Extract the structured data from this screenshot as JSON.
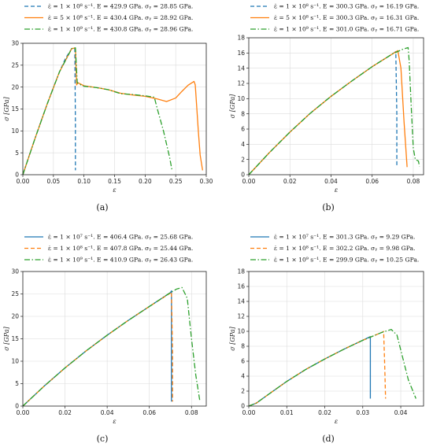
{
  "chart_data": [
    {
      "type": "line",
      "caption": "(a)",
      "xlabel": "ε",
      "ylabel": "σ [GPa]",
      "xlim": [
        0,
        0.3
      ],
      "ylim": [
        0,
        30
      ],
      "xticks": [
        0.0,
        0.05,
        0.1,
        0.15,
        0.2,
        0.25,
        0.3
      ],
      "xtick_labels": [
        "0.00",
        "0.05",
        "0.10",
        "0.15",
        "0.20",
        "0.25",
        "0.30"
      ],
      "yticks": [
        0,
        5,
        10,
        15,
        20,
        25,
        30
      ],
      "ytick_labels": [
        "0",
        "5",
        "10",
        "15",
        "20",
        "25",
        "30"
      ],
      "grid": true,
      "legend_position": "top-left (above plot)",
      "series": [
        {
          "name": "ε̇ = 1 × 10⁸ s⁻¹. E = 429.9 GPa. σᵧ = 28.85 GPa.",
          "color": "#1f77b4",
          "style": "dashed",
          "x": [
            0,
            0.01,
            0.02,
            0.03,
            0.04,
            0.05,
            0.06,
            0.07,
            0.08,
            0.085,
            0.086,
            0.086
          ],
          "y": [
            0,
            4.2,
            8.3,
            12.3,
            16.2,
            19.9,
            23.5,
            26.6,
            28.8,
            28.85,
            12,
            1
          ]
        },
        {
          "name": "ε̇ = 5 × 10⁸ s⁻¹. E = 430.4 GPa. σᵧ = 28.92 GPa.",
          "color": "#ff7f0e",
          "style": "solid",
          "x": [
            0,
            0.02,
            0.04,
            0.06,
            0.08,
            0.086,
            0.088,
            0.09,
            0.1,
            0.12,
            0.14,
            0.16,
            0.18,
            0.2,
            0.22,
            0.235,
            0.25,
            0.26,
            0.27,
            0.28,
            0.282,
            0.287,
            0.29,
            0.294
          ],
          "y": [
            0,
            8.3,
            16.2,
            23.5,
            28.8,
            28.92,
            20.5,
            21,
            20.3,
            19.9,
            19.4,
            18.6,
            18.2,
            17.9,
            17.3,
            16.7,
            17.5,
            19,
            20.4,
            21.3,
            20.5,
            10,
            4.5,
            1
          ]
        },
        {
          "name": "ε̇ = 1 × 10⁹ s⁻¹. E = 430.8 GPa. σᵧ = 28.96 GPa.",
          "color": "#2ca02c",
          "style": "dashdot",
          "x": [
            0,
            0.02,
            0.04,
            0.06,
            0.08,
            0.086,
            0.089,
            0.095,
            0.1,
            0.12,
            0.14,
            0.16,
            0.18,
            0.2,
            0.215,
            0.22,
            0.23,
            0.24,
            0.244
          ],
          "y": [
            0,
            8.3,
            16.2,
            23.5,
            28.8,
            28.96,
            21,
            20.5,
            20.2,
            19.9,
            19.4,
            18.5,
            18.3,
            18.0,
            17.7,
            15,
            10,
            4,
            1
          ]
        }
      ]
    },
    {
      "type": "line",
      "caption": "(b)",
      "xlabel": "ε",
      "ylabel": "σ [GPa]",
      "xlim": [
        0,
        0.085
      ],
      "ylim": [
        0,
        18
      ],
      "xticks": [
        0.0,
        0.02,
        0.04,
        0.06,
        0.08
      ],
      "xtick_labels": [
        "0.00",
        "0.02",
        "0.04",
        "0.06",
        "0.08"
      ],
      "yticks": [
        0,
        2,
        4,
        6,
        8,
        10,
        12,
        14,
        16,
        18
      ],
      "ytick_labels": [
        "0",
        "2",
        "4",
        "6",
        "8",
        "10",
        "12",
        "14",
        "16",
        "18"
      ],
      "grid": true,
      "legend_position": "top-left (above plot)",
      "series": [
        {
          "name": "ε̇ = 1 × 10⁸ s⁻¹. E = 300.3 GPa. σᵧ = 16.19 GPa.",
          "color": "#1f77b4",
          "style": "dashed",
          "x": [
            0,
            0.01,
            0.02,
            0.03,
            0.04,
            0.05,
            0.06,
            0.07,
            0.0715,
            0.072,
            0.072
          ],
          "y": [
            0,
            2.9,
            5.6,
            8.1,
            10.3,
            12.3,
            14.2,
            15.9,
            16.19,
            8,
            1
          ]
        },
        {
          "name": "ε̇ = 5 × 10⁸ s⁻¹. E = 300.3 GPa. σᵧ = 16.31 GPa.",
          "color": "#ff7f0e",
          "style": "solid",
          "x": [
            0,
            0.01,
            0.02,
            0.03,
            0.04,
            0.05,
            0.06,
            0.07,
            0.0725,
            0.074,
            0.0755,
            0.077
          ],
          "y": [
            0,
            2.9,
            5.6,
            8.1,
            10.3,
            12.3,
            14.2,
            15.9,
            16.31,
            14,
            7,
            1
          ]
        },
        {
          "name": "ε̇ = 1 × 10⁹ s⁻¹. E = 301.0 GPa. σᵧ = 16.71 GPa.",
          "color": "#2ca02c",
          "style": "dashdot",
          "x": [
            0,
            0.01,
            0.02,
            0.03,
            0.04,
            0.05,
            0.06,
            0.07,
            0.075,
            0.0775,
            0.078,
            0.079,
            0.08,
            0.081,
            0.0825,
            0.083
          ],
          "y": [
            0,
            2.9,
            5.6,
            8.1,
            10.3,
            12.3,
            14.2,
            15.9,
            16.5,
            16.71,
            15,
            9,
            3.5,
            2,
            1.8,
            1.1
          ]
        }
      ]
    },
    {
      "type": "line",
      "caption": "(c)",
      "xlabel": "ε",
      "ylabel": "σ [GPa]",
      "xlim": [
        0,
        0.087
      ],
      "ylim": [
        0,
        30
      ],
      "xticks": [
        0.0,
        0.02,
        0.04,
        0.06,
        0.08
      ],
      "xtick_labels": [
        "0.00",
        "0.02",
        "0.04",
        "0.06",
        "0.08"
      ],
      "yticks": [
        0,
        5,
        10,
        15,
        20,
        25,
        30
      ],
      "ytick_labels": [
        "0",
        "5",
        "10",
        "15",
        "20",
        "25",
        "30"
      ],
      "grid": true,
      "legend_position": "top-left (above plot)",
      "series": [
        {
          "name": "ε̇ = 1 × 10⁷ s⁻¹. E = 406.4 GPa. σᵧ = 25.68 GPa.",
          "color": "#1f77b4",
          "style": "solid",
          "x": [
            0,
            0.01,
            0.02,
            0.03,
            0.04,
            0.05,
            0.06,
            0.07,
            0.0705,
            0.0705
          ],
          "y": [
            0,
            4.4,
            8.5,
            12.3,
            15.8,
            19.1,
            22.2,
            25.3,
            25.68,
            1
          ]
        },
        {
          "name": "ε̇ = 1 × 10⁸ s⁻¹. E = 407.8 GPa. σᵧ = 25.44 GPa.",
          "color": "#ff7f0e",
          "style": "dashed",
          "x": [
            0,
            0.01,
            0.02,
            0.03,
            0.04,
            0.05,
            0.06,
            0.07,
            0.0705,
            0.071,
            0.071
          ],
          "y": [
            0,
            4.4,
            8.5,
            12.3,
            15.8,
            19.1,
            22.2,
            25.2,
            25.44,
            12,
            1
          ]
        },
        {
          "name": "ε̇ = 1 × 10⁹ s⁻¹. E = 410.9 GPa. σᵧ = 26.43 GPa.",
          "color": "#2ca02c",
          "style": "dashdot",
          "x": [
            0,
            0.01,
            0.02,
            0.03,
            0.04,
            0.05,
            0.06,
            0.07,
            0.073,
            0.0755,
            0.078,
            0.08,
            0.082,
            0.084
          ],
          "y": [
            0,
            4.4,
            8.5,
            12.3,
            15.8,
            19.1,
            22.2,
            25.3,
            26.1,
            26.43,
            24,
            15,
            7,
            1
          ]
        }
      ]
    },
    {
      "type": "line",
      "caption": "(d)",
      "xlabel": "ε",
      "ylabel": "σ [GPa]",
      "xlim": [
        0,
        0.046
      ],
      "ylim": [
        0,
        18
      ],
      "xticks": [
        0.0,
        0.01,
        0.02,
        0.03,
        0.04
      ],
      "xtick_labels": [
        "0.00",
        "0.01",
        "0.02",
        "0.03",
        "0.04"
      ],
      "yticks": [
        0,
        2,
        4,
        6,
        8,
        10,
        12,
        14,
        16,
        18
      ],
      "ytick_labels": [
        "0",
        "2",
        "4",
        "6",
        "8",
        "10",
        "12",
        "14",
        "16",
        "18"
      ],
      "grid": true,
      "legend_position": "top-left (above plot)",
      "series": [
        {
          "name": "ε̇ = 1 × 10⁷ s⁻¹. E = 301.3 GPa. σᵧ = 9.29 GPa.",
          "color": "#1f77b4",
          "style": "solid",
          "x": [
            0,
            0.002,
            0.005,
            0.01,
            0.015,
            0.02,
            0.025,
            0.03,
            0.032,
            0.032
          ],
          "y": [
            0,
            0.4,
            1.5,
            3.3,
            4.9,
            6.3,
            7.6,
            8.8,
            9.29,
            1
          ]
        },
        {
          "name": "ε̇ = 1 × 10⁸ s⁻¹. E = 302.2 GPa. σᵧ = 9.98 GPa.",
          "color": "#ff7f0e",
          "style": "dashed",
          "x": [
            0,
            0.002,
            0.005,
            0.01,
            0.015,
            0.02,
            0.025,
            0.03,
            0.035,
            0.0355,
            0.0358,
            0.036
          ],
          "y": [
            0,
            0.4,
            1.5,
            3.3,
            4.9,
            6.3,
            7.6,
            8.8,
            9.85,
            9.98,
            5,
            1
          ]
        },
        {
          "name": "ε̇ = 1 × 10⁹ s⁻¹. E = 299.9 GPa. σᵧ = 10.25 GPa.",
          "color": "#2ca02c",
          "style": "dashdot",
          "x": [
            0,
            0.002,
            0.005,
            0.01,
            0.015,
            0.02,
            0.025,
            0.03,
            0.035,
            0.0375,
            0.039,
            0.04,
            0.042,
            0.044
          ],
          "y": [
            0,
            0.4,
            1.5,
            3.3,
            4.9,
            6.3,
            7.6,
            8.8,
            9.85,
            10.25,
            9.5,
            7.5,
            3.5,
            1
          ]
        }
      ]
    }
  ]
}
